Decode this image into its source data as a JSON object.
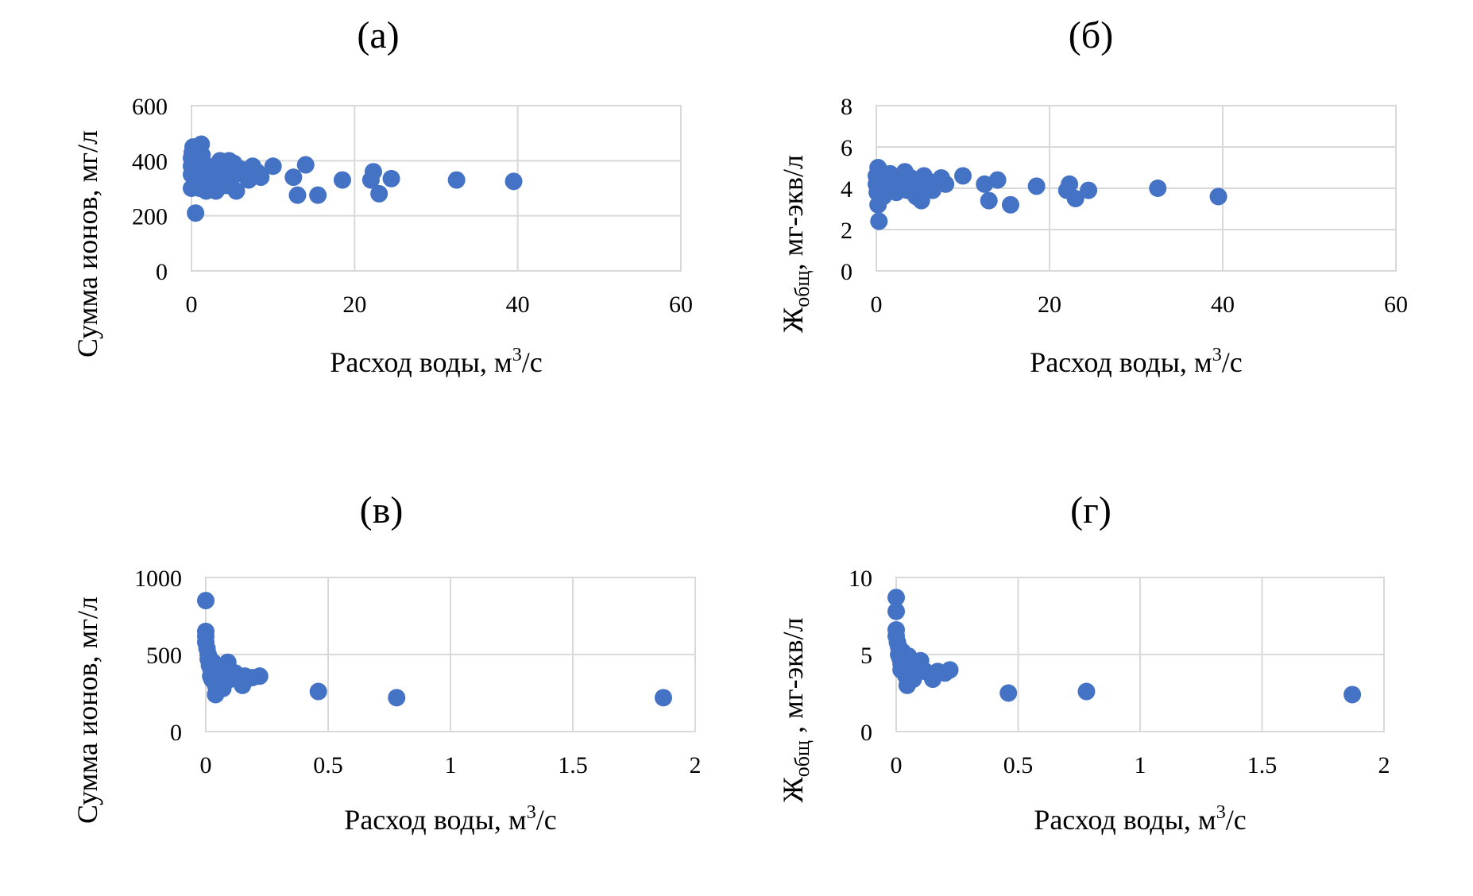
{
  "chart_data": [
    {
      "id": "a",
      "type": "scatter",
      "title": "(а)",
      "xlabel": "Расход воды, м",
      "xlabel_sup": "3",
      "xlabel_tail": "/с",
      "ylabel": "Сумма ионов, мг/л",
      "xlim": [
        0,
        60
      ],
      "ylim": [
        0,
        600
      ],
      "xticks": [
        "0",
        "20",
        "40",
        "60"
      ],
      "yticks": [
        "0",
        "200",
        "400",
        "600"
      ],
      "xtick_values": [
        0,
        20,
        40,
        60
      ],
      "ytick_values": [
        0,
        200,
        400,
        600
      ],
      "color": "#4472c4",
      "grid": true,
      "points": [
        [
          0.0,
          410
        ],
        [
          0.0,
          380
        ],
        [
          0.0,
          350
        ],
        [
          0.0,
          300
        ],
        [
          0.1,
          430
        ],
        [
          0.2,
          450
        ],
        [
          0.3,
          400
        ],
        [
          0.3,
          360
        ],
        [
          0.4,
          330
        ],
        [
          0.5,
          310
        ],
        [
          0.5,
          210
        ],
        [
          0.6,
          390
        ],
        [
          0.8,
          370
        ],
        [
          1.0,
          340
        ],
        [
          1.0,
          300
        ],
        [
          1.2,
          460
        ],
        [
          1.3,
          420
        ],
        [
          1.5,
          380
        ],
        [
          1.6,
          320
        ],
        [
          1.8,
          290
        ],
        [
          2.0,
          360
        ],
        [
          2.2,
          340
        ],
        [
          2.5,
          310
        ],
        [
          2.8,
          380
        ],
        [
          3.0,
          290
        ],
        [
          3.2,
          350
        ],
        [
          3.5,
          400
        ],
        [
          3.8,
          330
        ],
        [
          4.0,
          370
        ],
        [
          4.3,
          310
        ],
        [
          4.6,
          400
        ],
        [
          5.0,
          340
        ],
        [
          5.2,
          390
        ],
        [
          5.5,
          290
        ],
        [
          6.0,
          370
        ],
        [
          6.5,
          350
        ],
        [
          7.0,
          330
        ],
        [
          7.5,
          380
        ],
        [
          8.0,
          360
        ],
        [
          8.5,
          340
        ],
        [
          10.0,
          380
        ],
        [
          12.5,
          340
        ],
        [
          13.0,
          275
        ],
        [
          14.0,
          385
        ],
        [
          15.5,
          275
        ],
        [
          18.5,
          330
        ],
        [
          22.0,
          330
        ],
        [
          22.3,
          360
        ],
        [
          23.0,
          280
        ],
        [
          24.5,
          335
        ],
        [
          32.5,
          330
        ],
        [
          39.5,
          325
        ]
      ]
    },
    {
      "id": "b",
      "type": "scatter",
      "title": "(б)",
      "xlabel": "Расход воды, м",
      "xlabel_sup": "3",
      "xlabel_tail": "/с",
      "ylabel_main": "Ж",
      "ylabel_sub": "общ",
      "ylabel_tail": ", мг-экв/л",
      "xlim": [
        0,
        60
      ],
      "ylim": [
        0,
        8
      ],
      "xticks": [
        "0",
        "20",
        "40",
        "60"
      ],
      "yticks": [
        "0",
        "2",
        "4",
        "6",
        "8"
      ],
      "xtick_values": [
        0,
        20,
        40,
        60
      ],
      "ytick_values": [
        0,
        2,
        4,
        6,
        8
      ],
      "color": "#4472c4",
      "grid": true,
      "points": [
        [
          0.0,
          4.6
        ],
        [
          0.0,
          4.2
        ],
        [
          0.1,
          3.8
        ],
        [
          0.2,
          5.0
        ],
        [
          0.2,
          3.2
        ],
        [
          0.3,
          4.4
        ],
        [
          0.3,
          2.4
        ],
        [
          0.5,
          4.8
        ],
        [
          0.6,
          4.0
        ],
        [
          0.8,
          3.6
        ],
        [
          1.0,
          4.5
        ],
        [
          1.2,
          4.2
        ],
        [
          1.4,
          3.9
        ],
        [
          1.6,
          4.7
        ],
        [
          1.8,
          4.0
        ],
        [
          2.0,
          4.4
        ],
        [
          2.3,
          3.8
        ],
        [
          2.6,
          4.3
        ],
        [
          3.0,
          4.1
        ],
        [
          3.3,
          4.8
        ],
        [
          3.6,
          3.9
        ],
        [
          4.0,
          4.5
        ],
        [
          4.3,
          4.0
        ],
        [
          4.6,
          3.6
        ],
        [
          5.0,
          4.4
        ],
        [
          5.2,
          3.4
        ],
        [
          5.5,
          4.6
        ],
        [
          5.8,
          4.1
        ],
        [
          6.2,
          4.3
        ],
        [
          6.5,
          3.9
        ],
        [
          7.0,
          4.2
        ],
        [
          7.5,
          4.5
        ],
        [
          8.0,
          4.2
        ],
        [
          10.0,
          4.6
        ],
        [
          12.5,
          4.2
        ],
        [
          13.0,
          3.4
        ],
        [
          14.0,
          4.4
        ],
        [
          15.5,
          3.2
        ],
        [
          18.5,
          4.1
        ],
        [
          22.0,
          3.9
        ],
        [
          22.3,
          4.2
        ],
        [
          23.0,
          3.5
        ],
        [
          24.5,
          3.9
        ],
        [
          32.5,
          4.0
        ],
        [
          39.5,
          3.6
        ]
      ]
    },
    {
      "id": "v",
      "type": "scatter",
      "title": "(в)",
      "xlabel": "Расход воды, м",
      "xlabel_sup": "3",
      "xlabel_tail": "/с",
      "ylabel": "Сумма ионов, мг/л",
      "xlim": [
        0,
        2
      ],
      "ylim": [
        0,
        1000
      ],
      "xticks": [
        "0",
        "0.5",
        "1",
        "1.5",
        "2"
      ],
      "yticks": [
        "0",
        "500",
        "1000"
      ],
      "xtick_values": [
        0,
        0.5,
        1,
        1.5,
        2
      ],
      "ytick_values": [
        0,
        500,
        1000
      ],
      "color": "#4472c4",
      "grid": true,
      "points": [
        [
          0.0,
          850
        ],
        [
          0.0,
          650
        ],
        [
          0.0,
          620
        ],
        [
          0.0,
          580
        ],
        [
          0.005,
          540
        ],
        [
          0.01,
          500
        ],
        [
          0.01,
          470
        ],
        [
          0.015,
          430
        ],
        [
          0.02,
          410
        ],
        [
          0.02,
          360
        ],
        [
          0.025,
          340
        ],
        [
          0.03,
          450
        ],
        [
          0.035,
          390
        ],
        [
          0.04,
          300
        ],
        [
          0.04,
          240
        ],
        [
          0.05,
          420
        ],
        [
          0.055,
          360
        ],
        [
          0.06,
          320
        ],
        [
          0.07,
          280
        ],
        [
          0.08,
          400
        ],
        [
          0.09,
          450
        ],
        [
          0.1,
          340
        ],
        [
          0.12,
          380
        ],
        [
          0.15,
          300
        ],
        [
          0.16,
          360
        ],
        [
          0.19,
          350
        ],
        [
          0.22,
          360
        ],
        [
          0.46,
          260
        ],
        [
          0.78,
          220
        ],
        [
          1.87,
          220
        ]
      ]
    },
    {
      "id": "g",
      "type": "scatter",
      "title": "(г)",
      "xlabel": "Расход воды, м",
      "xlabel_sup": "3",
      "xlabel_tail": "/с",
      "ylabel_main": "Ж",
      "ylabel_sub": "общ",
      "ylabel_tail": " , мг-экв/л",
      "xlim": [
        0,
        2
      ],
      "ylim": [
        0,
        10
      ],
      "xticks": [
        "0",
        "0.5",
        "1",
        "1.5",
        "2"
      ],
      "yticks": [
        "0",
        "5",
        "10"
      ],
      "xtick_values": [
        0,
        0.5,
        1,
        1.5,
        2
      ],
      "ytick_values": [
        0,
        5,
        10
      ],
      "color": "#4472c4",
      "grid": true,
      "points": [
        [
          0.0,
          8.7
        ],
        [
          0.0,
          7.8
        ],
        [
          0.0,
          6.6
        ],
        [
          0.0,
          6.2
        ],
        [
          0.005,
          5.8
        ],
        [
          0.01,
          5.5
        ],
        [
          0.01,
          5.0
        ],
        [
          0.015,
          4.8
        ],
        [
          0.02,
          4.4
        ],
        [
          0.02,
          4.0
        ],
        [
          0.025,
          5.2
        ],
        [
          0.03,
          4.6
        ],
        [
          0.035,
          4.2
        ],
        [
          0.04,
          3.6
        ],
        [
          0.045,
          3.0
        ],
        [
          0.05,
          4.9
        ],
        [
          0.055,
          4.1
        ],
        [
          0.06,
          3.8
        ],
        [
          0.07,
          3.4
        ],
        [
          0.08,
          4.4
        ],
        [
          0.1,
          4.6
        ],
        [
          0.12,
          3.9
        ],
        [
          0.15,
          3.4
        ],
        [
          0.17,
          3.9
        ],
        [
          0.2,
          3.8
        ],
        [
          0.22,
          4.0
        ],
        [
          0.46,
          2.5
        ],
        [
          0.78,
          2.6
        ],
        [
          1.87,
          2.4
        ]
      ]
    }
  ]
}
